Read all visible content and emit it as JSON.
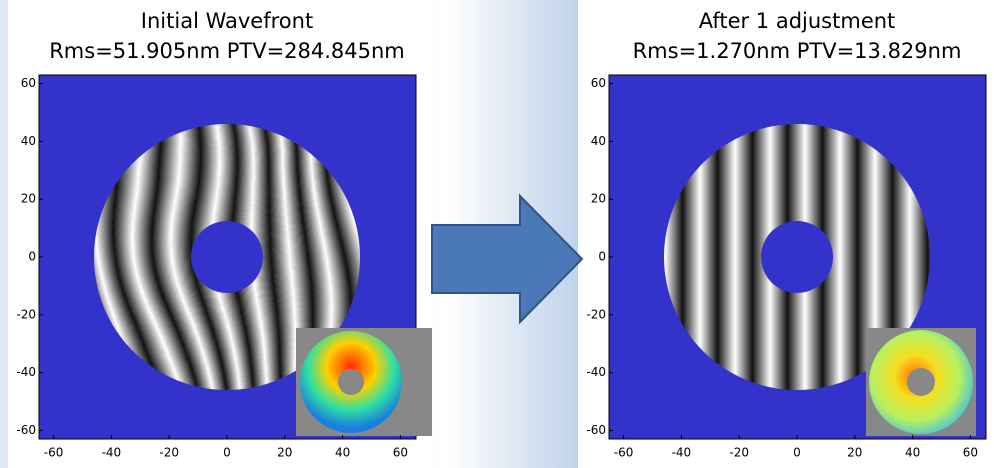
{
  "panels": [
    {
      "title": "Initial Wavefront",
      "subtitle": "Rms=51.905nm PTV=284.845nm",
      "xticks": [
        -60,
        -40,
        -20,
        0,
        20,
        40,
        60
      ],
      "yticks": [
        60,
        40,
        20,
        0,
        -20,
        -40,
        -60
      ]
    },
    {
      "title": "After 1 adjustment",
      "subtitle": "Rms=1.270nm PTV=13.829nm",
      "xticks": [
        -60,
        -40,
        -20,
        0,
        20,
        40,
        60
      ],
      "yticks": [
        60,
        40,
        20,
        0,
        -20,
        -40,
        -60
      ]
    }
  ]
}
